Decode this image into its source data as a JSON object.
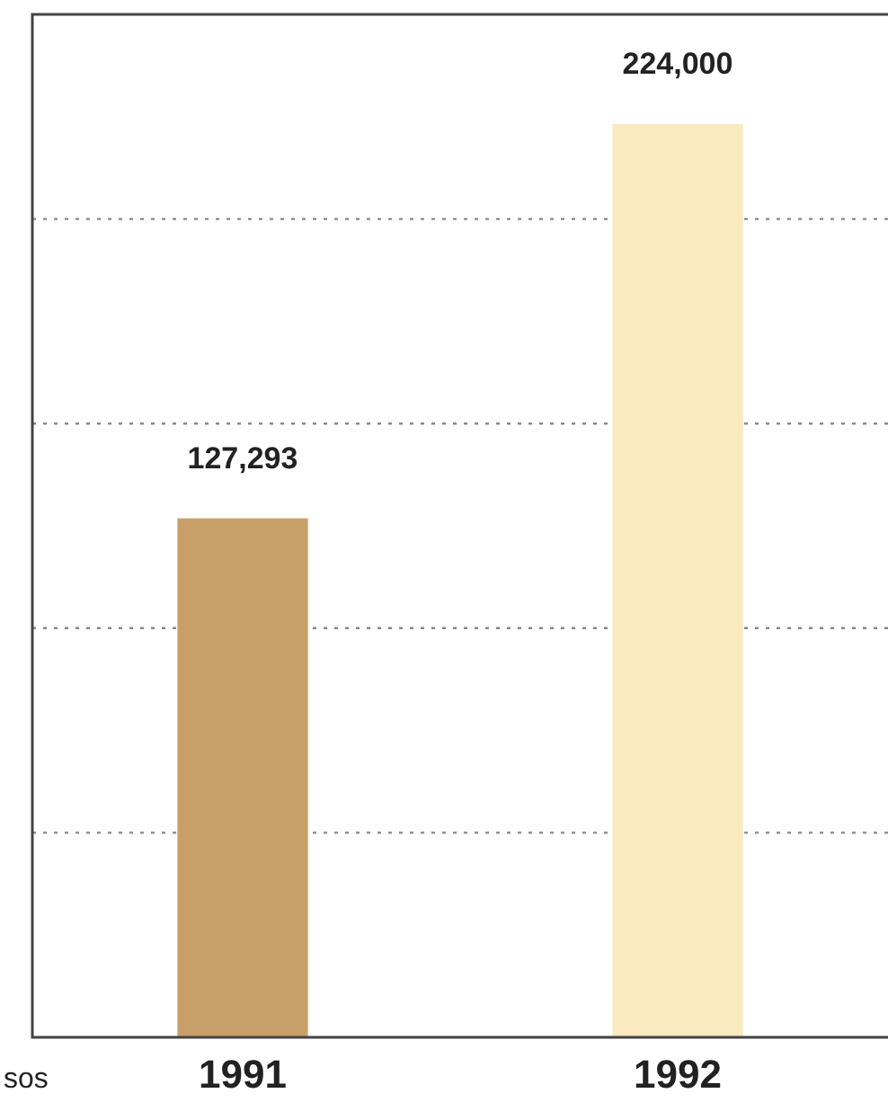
{
  "chart_data": {
    "type": "bar",
    "categories": [
      "1991",
      "1992"
    ],
    "values": [
      127293,
      224000
    ],
    "value_labels": [
      "127,293",
      "224,000"
    ],
    "colors": [
      "#c9a06a",
      "#fbe9c0"
    ],
    "grid": "y",
    "tick_labels": "x",
    "annotations": [
      "sos"
    ]
  }
}
